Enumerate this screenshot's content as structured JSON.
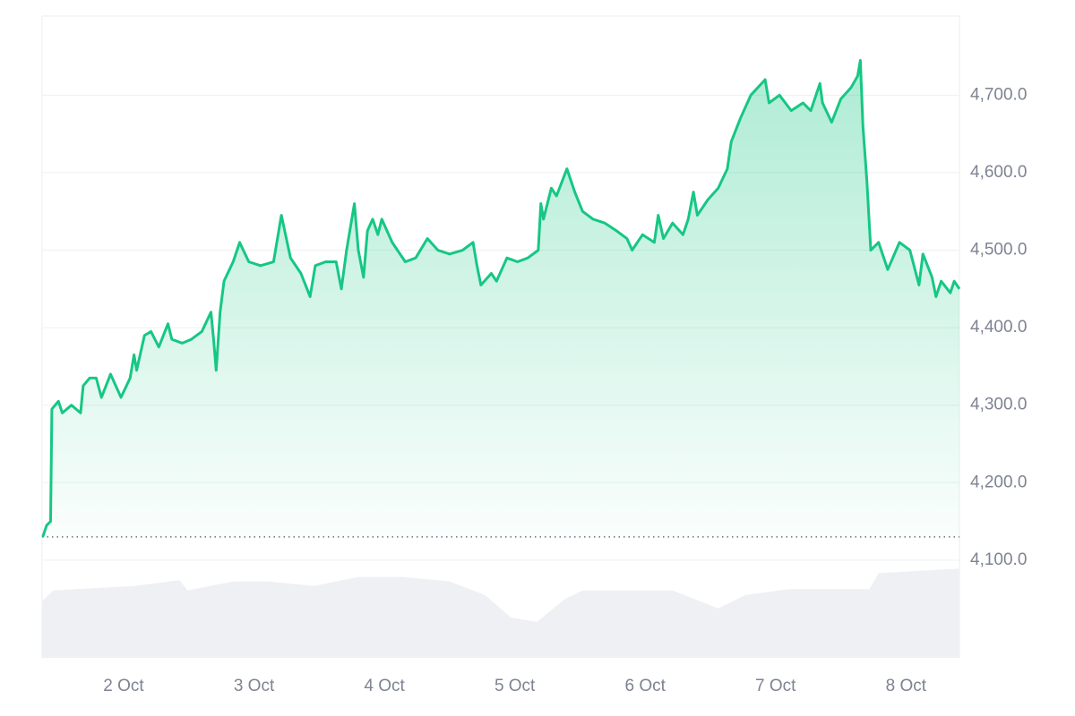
{
  "chart_data": {
    "type": "line",
    "xlim": [
      1.375,
      8.41
    ],
    "ylim": [
      3974,
      4802
    ],
    "y2lim": [
      0,
      100
    ],
    "grid": true,
    "baseline": 4130,
    "xticks": [
      {
        "value": 2,
        "label": "2 Oct"
      },
      {
        "value": 3,
        "label": "3 Oct"
      },
      {
        "value": 4,
        "label": "4 Oct"
      },
      {
        "value": 5,
        "label": "5 Oct"
      },
      {
        "value": 6,
        "label": "6 Oct"
      },
      {
        "value": 7,
        "label": "7 Oct"
      },
      {
        "value": 8,
        "label": "8 Oct"
      }
    ],
    "yticks": [
      {
        "value": 4100,
        "label": "4,100.0"
      },
      {
        "value": 4200,
        "label": "4,200.0"
      },
      {
        "value": 4300,
        "label": "4,300.0"
      },
      {
        "value": 4400,
        "label": "4,400.0"
      },
      {
        "value": 4500,
        "label": "4,500.0"
      },
      {
        "value": 4600,
        "label": "4,600.0"
      },
      {
        "value": 4700,
        "label": "4,700.0"
      }
    ],
    "series": [
      {
        "color": "#16c784",
        "x": [
          1.38,
          1.41,
          1.44,
          1.45,
          1.5,
          1.53,
          1.6,
          1.67,
          1.69,
          1.74,
          1.79,
          1.83,
          1.9,
          1.98,
          2.05,
          2.08,
          2.1,
          2.16,
          2.21,
          2.27,
          2.34,
          2.37,
          2.45,
          2.52,
          2.6,
          2.67,
          2.69,
          2.71,
          2.74,
          2.77,
          2.84,
          2.89,
          2.96,
          3.05,
          3.15,
          3.21,
          3.28,
          3.36,
          3.43,
          3.47,
          3.55,
          3.63,
          3.67,
          3.71,
          3.77,
          3.8,
          3.84,
          3.87,
          3.91,
          3.95,
          3.98,
          4.06,
          4.16,
          4.24,
          4.33,
          4.41,
          4.5,
          4.6,
          4.68,
          4.71,
          4.74,
          4.82,
          4.86,
          4.94,
          5.02,
          5.1,
          5.18,
          5.2,
          5.22,
          5.28,
          5.32,
          5.4,
          5.46,
          5.52,
          5.6,
          5.69,
          5.78,
          5.86,
          5.9,
          5.98,
          6.07,
          6.1,
          6.14,
          6.21,
          6.29,
          6.33,
          6.37,
          6.4,
          6.48,
          6.56,
          6.63,
          6.66,
          6.73,
          6.81,
          6.92,
          6.95,
          7.03,
          7.12,
          7.21,
          7.27,
          7.34,
          7.36,
          7.43,
          7.5,
          7.58,
          7.63,
          7.65,
          7.67,
          7.7,
          7.73,
          7.79,
          7.86,
          7.95,
          8.03,
          8.1,
          8.13,
          8.2,
          8.23,
          8.27,
          8.34,
          8.37,
          8.41
        ],
        "values": [
          4130,
          4145,
          4150,
          4295,
          4305,
          4290,
          4300,
          4290,
          4325,
          4335,
          4335,
          4310,
          4340,
          4310,
          4335,
          4365,
          4345,
          4390,
          4395,
          4375,
          4405,
          4385,
          4380,
          4385,
          4395,
          4420,
          4385,
          4345,
          4420,
          4460,
          4485,
          4510,
          4485,
          4480,
          4485,
          4545,
          4490,
          4470,
          4440,
          4480,
          4485,
          4485,
          4450,
          4500,
          4560,
          4500,
          4465,
          4525,
          4540,
          4520,
          4540,
          4510,
          4485,
          4490,
          4515,
          4500,
          4495,
          4500,
          4510,
          4480,
          4455,
          4470,
          4460,
          4490,
          4485,
          4490,
          4500,
          4560,
          4540,
          4580,
          4570,
          4605,
          4575,
          4550,
          4540,
          4535,
          4525,
          4515,
          4500,
          4520,
          4510,
          4545,
          4515,
          4535,
          4520,
          4540,
          4575,
          4545,
          4565,
          4580,
          4605,
          4640,
          4670,
          4700,
          4720,
          4690,
          4700,
          4680,
          4690,
          4680,
          4715,
          4690,
          4665,
          4695,
          4710,
          4725,
          4745,
          4660,
          4590,
          4500,
          4510,
          4475,
          4510,
          4500,
          4455,
          4495,
          4465,
          4440,
          4460,
          4445,
          4460,
          4450
        ]
      },
      {
        "type": "area",
        "axis": "y2",
        "color": "#eff0f3",
        "x": [
          1.375,
          1.46,
          2.08,
          2.43,
          2.49,
          2.84,
          3.11,
          3.46,
          3.8,
          4.14,
          4.5,
          4.77,
          4.97,
          5.17,
          5.38,
          5.52,
          6.21,
          6.56,
          6.77,
          7.1,
          7.72,
          7.79,
          8.41
        ],
        "values": [
          8.8,
          10.5,
          11.2,
          12.1,
          10.5,
          11.9,
          11.9,
          11.2,
          12.6,
          12.6,
          11.9,
          9.8,
          6.3,
          5.6,
          9.1,
          10.5,
          10.5,
          7.7,
          9.8,
          10.7,
          10.7,
          13.2,
          13.9
        ]
      }
    ]
  }
}
